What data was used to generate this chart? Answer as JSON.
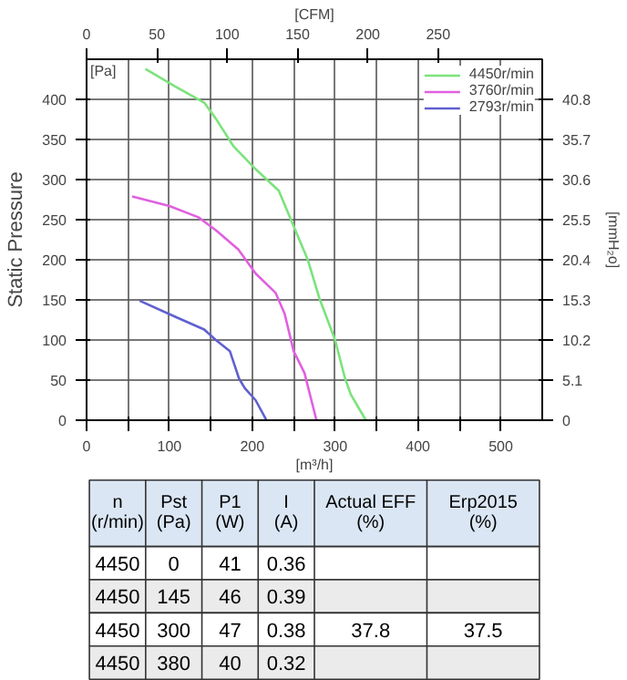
{
  "chart_data": [
    {
      "type": "line",
      "ylabel": "Static Pressure",
      "xlabel": "[m³/h]",
      "x2label": "[CFM]",
      "y2label": "[mmH₂o]",
      "annotations": [
        "[Pa]"
      ],
      "xlim": [
        0,
        550
      ],
      "ylim": [
        0,
        450
      ],
      "x2lim": [
        0,
        324
      ],
      "y2lim": [
        0,
        45.9
      ],
      "xticks": [
        0,
        {
          "value": 50,
          "label": null
        },
        100,
        {
          "value": 150,
          "label": null
        },
        200,
        {
          "value": 250,
          "label": null
        },
        300,
        {
          "value": 350,
          "label": null
        },
        400,
        {
          "value": 450,
          "label": null
        },
        500
      ],
      "yticks": [
        0,
        50,
        100,
        150,
        200,
        250,
        300,
        350,
        400
      ],
      "x2ticks": [
        0,
        50,
        100,
        150,
        200,
        250
      ],
      "y2ticks": [
        0,
        5.1,
        10.2,
        15.3,
        20.4,
        25.5,
        30.6,
        35.7,
        40.8
      ],
      "grid": true,
      "legend": "top right",
      "series": [
        {
          "name": "4450r/min",
          "color": "#7be37b",
          "x": [
            71,
            107,
            142,
            156,
            177,
            204,
            232,
            267,
            281,
            300,
            312,
            319,
            336,
            338
          ],
          "values": [
            438,
            416,
            396,
            376,
            342,
            313,
            286,
            200,
            152,
            100,
            52,
            32,
            2,
            0
          ]
        },
        {
          "name": "3760r/min",
          "color": "#e060e0",
          "x": [
            55,
            100,
            135,
            156,
            183,
            204,
            228,
            239,
            250,
            263,
            277,
            278
          ],
          "values": [
            279,
            267,
            253,
            237,
            213,
            183,
            159,
            133,
            86,
            59,
            2,
            0
          ]
        },
        {
          "name": "2793r/min",
          "color": "#6060d0",
          "x": [
            64,
            107,
            142,
            156,
            173,
            184,
            191,
            204,
            216,
            217
          ],
          "values": [
            149,
            129,
            113,
            100,
            86,
            52,
            40,
            25,
            2,
            0
          ]
        }
      ]
    },
    {
      "type": "other",
      "categories": [
        "n\n(r/min)",
        "Pst\n(Pa)",
        "P1\n(W)",
        "I\n(A)",
        "Actual EFF\n(%)",
        "Erp2015\n(%)"
      ],
      "cell_labels": [
        [
          "4450",
          "0",
          "41",
          "0.36",
          null,
          null
        ],
        [
          "4450",
          "145",
          "46",
          "0.39",
          null,
          null
        ],
        [
          "4450",
          "300",
          "47",
          "0.38",
          "37.8",
          "37.5"
        ],
        [
          "4450",
          "380",
          "40",
          "0.32",
          null,
          null
        ]
      ]
    }
  ]
}
